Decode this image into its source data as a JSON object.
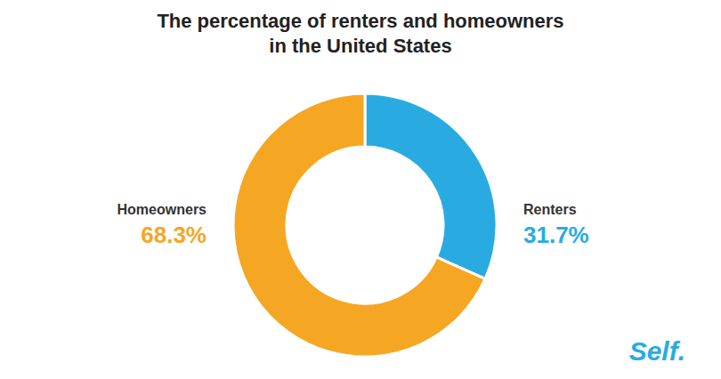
{
  "chart_data": {
    "type": "pie",
    "title": "The percentage of renters and homeowners",
    "subtitle": "in the United States",
    "categories": [
      "Renters",
      "Homeowners"
    ],
    "values": [
      31.7,
      68.3
    ],
    "value_labels": [
      "31.7%",
      "68.3%"
    ],
    "colors": [
      "#29abe2",
      "#f5a623"
    ],
    "data_labels": true,
    "annotations": [
      "Self."
    ]
  }
}
